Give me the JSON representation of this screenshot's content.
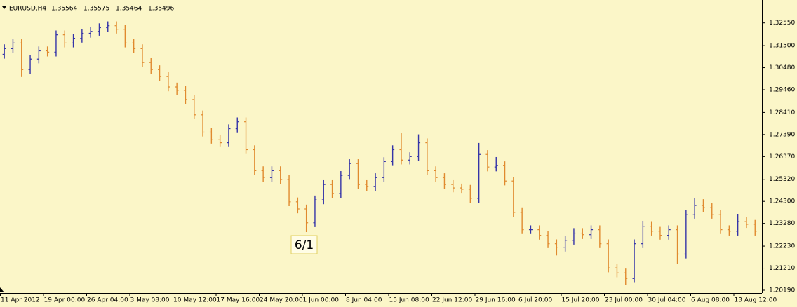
{
  "chart_data": {
    "type": "ohlc",
    "symbol": "EURUSD,H4",
    "quote": [
      1.35564,
      1.35575,
      1.35464,
      1.35496
    ],
    "annotation": "6/1",
    "up_color": "#3434a8",
    "down_color": "#e08a2e",
    "categories": [
      "11 Apr 2012",
      null,
      null,
      null,
      null,
      "19 Apr 00:00",
      null,
      null,
      null,
      null,
      "26 Apr 04:00",
      null,
      null,
      null,
      null,
      "3 May 08:00",
      null,
      null,
      null,
      null,
      "10 May 12:00",
      null,
      null,
      null,
      null,
      "17 May 16:00",
      null,
      null,
      null,
      null,
      "24 May 20:00",
      null,
      null,
      null,
      null,
      "1 Jun 00:00",
      null,
      null,
      null,
      null,
      "8 Jun 04:00",
      null,
      null,
      null,
      null,
      "15 Jun 08:00",
      null,
      null,
      null,
      null,
      "22 Jun 12:00",
      null,
      null,
      null,
      null,
      "29 Jun 16:00",
      null,
      null,
      null,
      null,
      "6 Jul 20:00",
      null,
      null,
      null,
      null,
      "15 Jul 20:00",
      null,
      null,
      null,
      null,
      "23 Jul 00:00",
      null,
      null,
      null,
      null,
      "30 Jul 04:00",
      null,
      null,
      null,
      null,
      "6 Aug 08:00",
      null,
      null,
      null,
      null,
      "13 Aug 12:00",
      null,
      null
    ],
    "open": [
      1.311,
      1.3136,
      1.3162,
      1.3039,
      1.3088,
      1.3126,
      1.312,
      1.32,
      1.3162,
      1.3184,
      1.3207,
      1.3216,
      1.3233,
      1.3242,
      1.3226,
      1.3162,
      1.3136,
      1.3072,
      1.3039,
      1.3007,
      1.2959,
      1.2943,
      1.2901,
      1.283,
      1.275,
      1.2717,
      1.2701,
      1.2766,
      1.2798,
      1.2669,
      1.2572,
      1.254,
      1.2572,
      1.2531,
      1.2428,
      1.2395,
      1.2331,
      1.2437,
      1.2508,
      1.2466,
      1.255,
      1.2605,
      1.2508,
      1.2498,
      1.254,
      1.2614,
      1.2669,
      1.2621,
      1.2637,
      1.2701,
      1.2572,
      1.254,
      1.2508,
      1.2492,
      1.2486,
      1.2444,
      1.2647,
      1.2589,
      1.2595,
      1.2524,
      1.2379,
      1.2299,
      1.2299,
      1.2273,
      1.2234,
      1.2218,
      1.225,
      1.2283,
      1.2276,
      1.2299,
      1.2234,
      1.2122,
      1.2099,
      1.2073,
      1.2234,
      1.2315,
      1.2292,
      1.2273,
      1.2299,
      1.2186,
      1.237,
      1.2411,
      1.2402,
      1.237,
      1.2299,
      1.2292,
      1.2337,
      1.2324
    ],
    "high": [
      1.3156,
      1.3182,
      1.3182,
      1.3108,
      1.3146,
      1.3146,
      1.322,
      1.322,
      1.3204,
      1.3227,
      1.3236,
      1.3253,
      1.3262,
      1.3262,
      1.3246,
      1.3182,
      1.3156,
      1.3092,
      1.3059,
      1.3027,
      1.2979,
      1.2963,
      1.2921,
      1.285,
      1.277,
      1.2737,
      1.2786,
      1.2818,
      1.2818,
      1.2689,
      1.2592,
      1.2592,
      1.2592,
      1.2551,
      1.2448,
      1.2415,
      1.2457,
      1.2528,
      1.2528,
      1.257,
      1.2625,
      1.2625,
      1.2528,
      1.256,
      1.2634,
      1.2689,
      1.2745,
      1.2657,
      1.274,
      1.2721,
      1.2592,
      1.256,
      1.2528,
      1.2512,
      1.2506,
      1.27,
      1.2667,
      1.2635,
      1.2615,
      1.2544,
      1.2399,
      1.2319,
      1.2319,
      1.2293,
      1.2254,
      1.227,
      1.2303,
      1.2303,
      1.2319,
      1.2319,
      1.2254,
      1.2142,
      1.2119,
      1.2254,
      1.234,
      1.2335,
      1.2312,
      1.2319,
      1.2319,
      1.239,
      1.2445,
      1.244,
      1.2422,
      1.239,
      1.2319,
      1.237,
      1.2357,
      1.2344
    ],
    "low": [
      1.309,
      1.3116,
      1.3005,
      1.3019,
      1.3068,
      1.31,
      1.31,
      1.3142,
      1.3142,
      1.3164,
      1.3187,
      1.3196,
      1.3213,
      1.3206,
      1.3142,
      1.3116,
      1.3052,
      1.3019,
      1.2987,
      1.2939,
      1.2923,
      1.2881,
      1.281,
      1.273,
      1.2697,
      1.2681,
      1.2681,
      1.2746,
      1.2649,
      1.2552,
      1.252,
      1.252,
      1.2511,
      1.2408,
      1.2375,
      1.2288,
      1.2311,
      1.2417,
      1.2446,
      1.2446,
      1.253,
      1.2488,
      1.2478,
      1.2478,
      1.252,
      1.2594,
      1.2601,
      1.2601,
      1.2617,
      1.2552,
      1.252,
      1.2488,
      1.2472,
      1.2466,
      1.2424,
      1.2424,
      1.2569,
      1.2569,
      1.2504,
      1.2359,
      1.2279,
      1.2279,
      1.2253,
      1.2214,
      1.218,
      1.2198,
      1.223,
      1.2256,
      1.2256,
      1.2214,
      1.2102,
      1.2079,
      1.2042,
      1.2053,
      1.2214,
      1.2272,
      1.2253,
      1.2253,
      1.214,
      1.2166,
      1.235,
      1.2382,
      1.235,
      1.2279,
      1.2272,
      1.2272,
      1.2304,
      1.2272
    ],
    "close": [
      1.3136,
      1.3162,
      1.3039,
      1.3088,
      1.3126,
      1.312,
      1.32,
      1.3162,
      1.3184,
      1.3207,
      1.3216,
      1.3233,
      1.3242,
      1.3226,
      1.3162,
      1.3136,
      1.3072,
      1.3039,
      1.3007,
      1.2959,
      1.2943,
      1.2901,
      1.283,
      1.275,
      1.2717,
      1.2701,
      1.2766,
      1.2798,
      1.2669,
      1.2572,
      1.254,
      1.2572,
      1.2531,
      1.2428,
      1.2395,
      1.2331,
      1.2437,
      1.2508,
      1.2466,
      1.255,
      1.2605,
      1.2508,
      1.2498,
      1.254,
      1.2614,
      1.2669,
      1.2621,
      1.2637,
      1.2701,
      1.2572,
      1.254,
      1.2508,
      1.2492,
      1.2486,
      1.2444,
      1.2647,
      1.2589,
      1.2595,
      1.2524,
      1.2379,
      1.2299,
      1.2299,
      1.2273,
      1.2234,
      1.2218,
      1.225,
      1.2283,
      1.2276,
      1.2299,
      1.2234,
      1.2122,
      1.2099,
      1.2073,
      1.2234,
      1.2315,
      1.2292,
      1.2273,
      1.2299,
      1.2186,
      1.237,
      1.2411,
      1.2402,
      1.237,
      1.2299,
      1.2292,
      1.2337,
      1.2324,
      1.2292
    ],
    "ylim": [
      1.2006,
      1.3361
    ],
    "yticks": [
      {
        "value": 1.3255,
        "label": "1.32550"
      },
      {
        "value": 1.315,
        "label": "1.31500"
      },
      {
        "value": 1.3048,
        "label": "1.30480"
      },
      {
        "value": 1.2946,
        "label": "1.29460"
      },
      {
        "value": 1.2841,
        "label": "1.28410"
      },
      {
        "value": 1.2739,
        "label": "1.27390"
      },
      {
        "value": 1.2637,
        "label": "1.26370"
      },
      {
        "value": 1.2532,
        "label": "1.25320"
      },
      {
        "value": 1.243,
        "label": "1.24300"
      },
      {
        "value": 1.2328,
        "label": "1.23280"
      },
      {
        "value": 1.2223,
        "label": "1.22230"
      },
      {
        "value": 1.2121,
        "label": "1.21210"
      },
      {
        "value": 1.2019,
        "label": "1.20190"
      }
    ]
  }
}
